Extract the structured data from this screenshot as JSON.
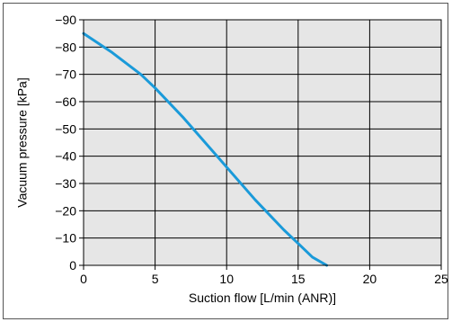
{
  "chart_data": {
    "type": "line",
    "title": "",
    "xlabel": "Suction flow [L/min (ANR)]",
    "ylabel": "Vacuum pressure [kPa]",
    "xlim": [
      0,
      25
    ],
    "ylim": [
      0,
      -90
    ],
    "x_ticks": [
      "0",
      "5",
      "10",
      "15",
      "20",
      "25"
    ],
    "y_ticks": [
      "0",
      "−10",
      "−20",
      "−30",
      "−40",
      "−50",
      "−60",
      "−70",
      "−80",
      "−90"
    ],
    "grid": true,
    "plot_background": "#e6e6e6",
    "series": [
      {
        "color": "#1a9ad9",
        "x": [
          0,
          2,
          4,
          5,
          7,
          9,
          10,
          12,
          14,
          15,
          16,
          17
        ],
        "y": [
          -85,
          -78,
          -70,
          -65,
          -54,
          -42,
          -36,
          -24,
          -13,
          -8,
          -3,
          0
        ]
      }
    ]
  }
}
